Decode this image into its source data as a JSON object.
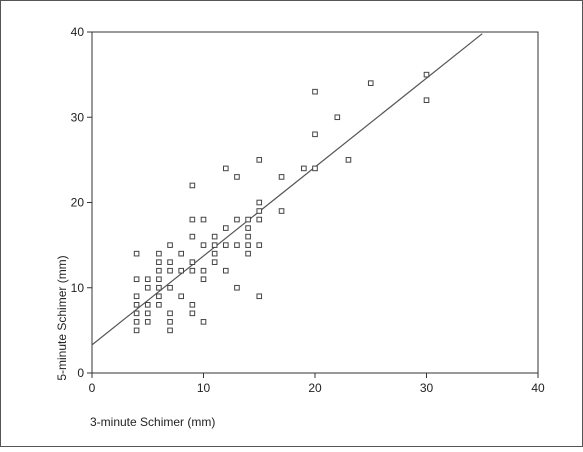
{
  "chart_data": {
    "type": "scatter",
    "title": "",
    "xlabel": "3-minute Schimer (mm)",
    "ylabel": "5-minute Schimer (mm)",
    "xlim": [
      0,
      40
    ],
    "ylim": [
      0,
      40
    ],
    "xticks": [
      "0",
      "10",
      "20",
      "30",
      "40"
    ],
    "yticks": [
      "0",
      "10",
      "20",
      "30",
      "40"
    ],
    "grid": false,
    "marker": "hollow-square",
    "fit_line": {
      "x": [
        0,
        35
      ],
      "y": [
        3.3,
        39.8
      ]
    },
    "points": [
      [
        4,
        5
      ],
      [
        4,
        6
      ],
      [
        4,
        7
      ],
      [
        4,
        8
      ],
      [
        4,
        9
      ],
      [
        4,
        11
      ],
      [
        4,
        14
      ],
      [
        5,
        6
      ],
      [
        5,
        7
      ],
      [
        5,
        8
      ],
      [
        5,
        10
      ],
      [
        5,
        11
      ],
      [
        6,
        8
      ],
      [
        6,
        9
      ],
      [
        6,
        10
      ],
      [
        6,
        11
      ],
      [
        6,
        12
      ],
      [
        6,
        13
      ],
      [
        6,
        14
      ],
      [
        7,
        5
      ],
      [
        7,
        6
      ],
      [
        7,
        7
      ],
      [
        7,
        10
      ],
      [
        7,
        12
      ],
      [
        7,
        13
      ],
      [
        7,
        15
      ],
      [
        8,
        9
      ],
      [
        8,
        12
      ],
      [
        8,
        14
      ],
      [
        9,
        7
      ],
      [
        9,
        8
      ],
      [
        9,
        12
      ],
      [
        9,
        13
      ],
      [
        9,
        16
      ],
      [
        9,
        18
      ],
      [
        9,
        22
      ],
      [
        10,
        6
      ],
      [
        10,
        11
      ],
      [
        10,
        12
      ],
      [
        10,
        15
      ],
      [
        10,
        18
      ],
      [
        11,
        13
      ],
      [
        11,
        14
      ],
      [
        11,
        15
      ],
      [
        11,
        16
      ],
      [
        12,
        12
      ],
      [
        12,
        15
      ],
      [
        12,
        17
      ],
      [
        12,
        24
      ],
      [
        13,
        10
      ],
      [
        13,
        15
      ],
      [
        13,
        18
      ],
      [
        13,
        23
      ],
      [
        14,
        14
      ],
      [
        14,
        15
      ],
      [
        14,
        16
      ],
      [
        14,
        17
      ],
      [
        14,
        18
      ],
      [
        15,
        9
      ],
      [
        15,
        15
      ],
      [
        15,
        18
      ],
      [
        15,
        19
      ],
      [
        15,
        20
      ],
      [
        15,
        25
      ],
      [
        17,
        19
      ],
      [
        17,
        23
      ],
      [
        19,
        24
      ],
      [
        20,
        24
      ],
      [
        20,
        28
      ],
      [
        20,
        33
      ],
      [
        22,
        30
      ],
      [
        23,
        25
      ],
      [
        25,
        34
      ],
      [
        30,
        32
      ],
      [
        30,
        35
      ]
    ]
  }
}
